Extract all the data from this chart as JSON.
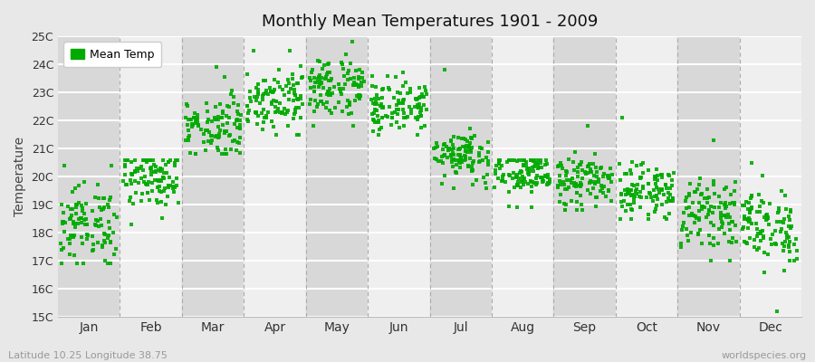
{
  "title": "Monthly Mean Temperatures 1901 - 2009",
  "ylabel": "Temperature",
  "subtitle": "Latitude 10.25 Longitude 38.75",
  "watermark": "worldspecies.org",
  "ylim": [
    15,
    25
  ],
  "ytick_labels": [
    "15C",
    "16C",
    "17C",
    "18C",
    "19C",
    "20C",
    "21C",
    "22C",
    "23C",
    "24C",
    "25C"
  ],
  "ytick_values": [
    15,
    16,
    17,
    18,
    19,
    20,
    21,
    22,
    23,
    24,
    25
  ],
  "months": [
    "Jan",
    "Feb",
    "Mar",
    "Apr",
    "May",
    "Jun",
    "Jul",
    "Aug",
    "Sep",
    "Oct",
    "Nov",
    "Dec"
  ],
  "month_positions": [
    1,
    2,
    3,
    4,
    5,
    6,
    7,
    8,
    9,
    10,
    11,
    12
  ],
  "dot_color": "#00aa00",
  "background_color": "#e8e8e8",
  "plot_bg_color": "#efefef",
  "legend_label": "Mean Temp",
  "month_mean": [
    18.3,
    20.0,
    21.8,
    22.8,
    23.2,
    22.5,
    20.8,
    20.1,
    19.8,
    19.5,
    18.7,
    18.2
  ],
  "month_std": [
    0.7,
    0.55,
    0.55,
    0.55,
    0.55,
    0.45,
    0.45,
    0.45,
    0.45,
    0.45,
    0.55,
    0.65
  ],
  "month_min": [
    16.9,
    18.3,
    20.8,
    21.5,
    21.8,
    21.5,
    19.6,
    18.9,
    18.8,
    18.5,
    17.0,
    15.2
  ],
  "month_max": [
    20.4,
    20.6,
    23.9,
    24.5,
    24.8,
    23.7,
    23.8,
    20.6,
    21.8,
    22.1,
    21.3,
    20.5
  ],
  "n_years": 109
}
